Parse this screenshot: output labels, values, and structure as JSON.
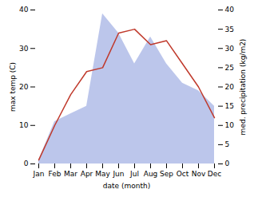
{
  "chart_data": {
    "type": "line",
    "xlabel": "date (month)",
    "ylabel": "max temp (C)",
    "y2label": "med. precipitation (kg/m2)",
    "categories": [
      "Jan",
      "Feb",
      "Mar",
      "Apr",
      "May",
      "Jun",
      "Jul",
      "Aug",
      "Sep",
      "Oct",
      "Nov",
      "Dec"
    ],
    "series": [
      {
        "type": "area",
        "color": "#b0bce8",
        "axis": "y2",
        "values": [
          1,
          11,
          13,
          15,
          39,
          34,
          26,
          33,
          26,
          21,
          19,
          15
        ]
      },
      {
        "type": "line",
        "color": "#c0392b",
        "values": [
          1,
          10,
          18,
          24,
          25,
          34,
          35,
          31,
          32,
          26,
          20,
          12
        ]
      }
    ],
    "ylim": [
      0,
      40
    ],
    "yticks": [
      0,
      10,
      20,
      30,
      40
    ],
    "y2lim": [
      0,
      40
    ],
    "y2ticks": [
      0,
      5,
      10,
      15,
      20,
      25,
      30,
      35,
      40
    ]
  }
}
